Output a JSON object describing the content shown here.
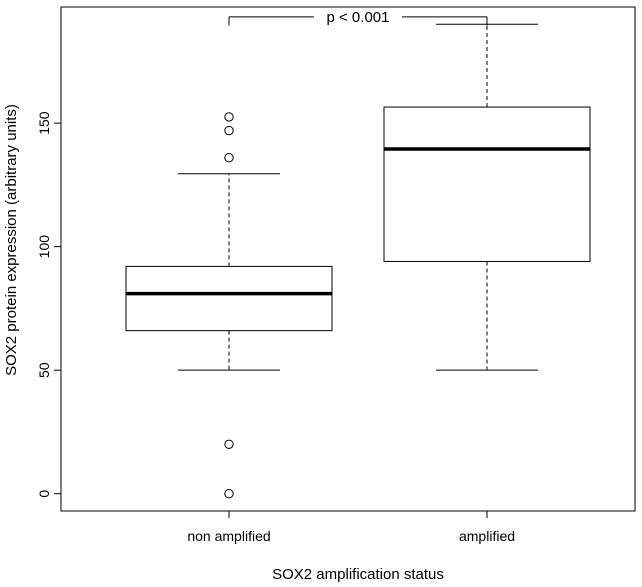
{
  "chart_data": {
    "type": "boxplot",
    "title": "",
    "xlabel": "SOX2 amplification status",
    "ylabel": "SOX2 protein expression (arbitrary units)",
    "categories": [
      "non amplified",
      "amplified"
    ],
    "ylim": [
      -7,
      197
    ],
    "yticks": [
      0,
      50,
      100,
      150
    ],
    "ytick_labels": [
      "0",
      "50",
      "100",
      "150"
    ],
    "grid": false,
    "boxes": [
      {
        "category": "non amplified",
        "whisker_low": 50,
        "q1": 66,
        "median": 81,
        "q3": 92,
        "whisker_high": 129.5,
        "outliers": [
          0,
          20,
          136,
          147,
          152.5
        ]
      },
      {
        "category": "amplified",
        "whisker_low": 50,
        "q1": 94,
        "median": 139.5,
        "q3": 156.5,
        "whisker_high": 190,
        "outliers": []
      }
    ],
    "annotation": {
      "text": "p < 0.001",
      "y": 193,
      "tick_y": 191.5
    }
  }
}
